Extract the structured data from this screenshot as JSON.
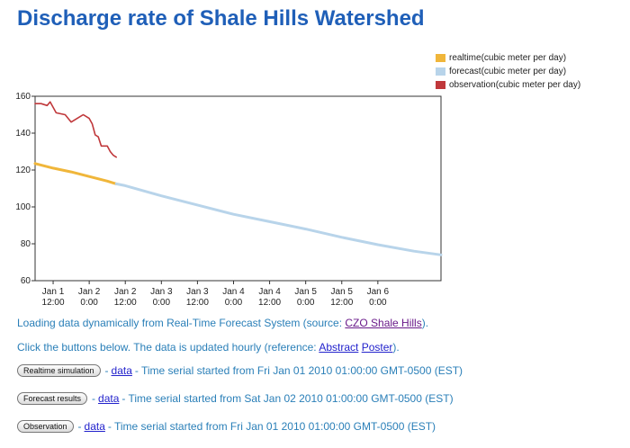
{
  "page": {
    "title": "Discharge rate of Shale Hills Watershed",
    "loading_prefix": "Loading data dynamically from Real-Time Forecast System (source: ",
    "loading_link": "CZO Shale Hills",
    "loading_suffix": ").",
    "click_prefix": "Click the buttons below. The data is updated hourly (reference: ",
    "abstract_link": "Abstract",
    "poster_link": "Poster",
    "click_suffix": ").",
    "rows": [
      {
        "button": "Realtime simulation",
        "sep": " - ",
        "link": "data",
        "text": " - Time serial started from Fri Jan 01 2010 01:00:00 GMT-0500 (EST)"
      },
      {
        "button": "Forecast results",
        "sep": " - ",
        "link": "data",
        "text": " - Time serial started from Sat Jan 02 2010 01:00:00 GMT-0500 (EST)"
      },
      {
        "button": "Observation",
        "sep": " - ",
        "link": "data",
        "text": " - Time serial started from Fri Jan 01 2010 01:00:00 GMT-0500 (EST)"
      }
    ]
  },
  "chart_data": {
    "type": "line",
    "title": "Discharge rate of Shale Hills Watershed",
    "xlabel": "",
    "ylabel": "",
    "ylim": [
      60,
      160
    ],
    "yticks": [
      60,
      80,
      100,
      120,
      140,
      160
    ],
    "xlim": [
      "2010-01-01 06:00",
      "2010-01-06 21:00"
    ],
    "xticks": [
      {
        "t": "2010-01-01 12:00",
        "line1": "Jan 1",
        "line2": "12:00"
      },
      {
        "t": "2010-01-02 00:00",
        "line1": "Jan 2",
        "line2": "0:00"
      },
      {
        "t": "2010-01-02 12:00",
        "line1": "Jan 2",
        "line2": "12:00"
      },
      {
        "t": "2010-01-03 00:00",
        "line1": "Jan 3",
        "line2": "0:00"
      },
      {
        "t": "2010-01-03 12:00",
        "line1": "Jan 3",
        "line2": "12:00"
      },
      {
        "t": "2010-01-04 00:00",
        "line1": "Jan 4",
        "line2": "0:00"
      },
      {
        "t": "2010-01-04 12:00",
        "line1": "Jan 4",
        "line2": "12:00"
      },
      {
        "t": "2010-01-05 00:00",
        "line1": "Jan 5",
        "line2": "0:00"
      },
      {
        "t": "2010-01-05 12:00",
        "line1": "Jan 5",
        "line2": "12:00"
      },
      {
        "t": "2010-01-06 00:00",
        "line1": "Jan 6",
        "line2": "0:00"
      }
    ],
    "legend_position": "top-right, outside plot",
    "grid": false,
    "series": [
      {
        "name": "realtime(cubic meter per day)",
        "color": "#f0b63a",
        "points": [
          [
            "2010-01-01 06:00",
            123.5
          ],
          [
            "2010-01-01 12:00",
            121
          ],
          [
            "2010-01-01 18:00",
            119
          ],
          [
            "2010-01-02 00:00",
            116.5
          ],
          [
            "2010-01-02 06:00",
            114
          ],
          [
            "2010-01-02 09:00",
            112.5
          ]
        ]
      },
      {
        "name": "forecast(cubic meter per day)",
        "color": "#b8d4ea",
        "points": [
          [
            "2010-01-02 09:00",
            112.5
          ],
          [
            "2010-01-02 12:00",
            111.5
          ],
          [
            "2010-01-03 00:00",
            106
          ],
          [
            "2010-01-03 12:00",
            101
          ],
          [
            "2010-01-04 00:00",
            96
          ],
          [
            "2010-01-04 12:00",
            92
          ],
          [
            "2010-01-05 00:00",
            88
          ],
          [
            "2010-01-05 12:00",
            83.5
          ],
          [
            "2010-01-06 00:00",
            79.5
          ],
          [
            "2010-01-06 12:00",
            76
          ],
          [
            "2010-01-06 21:00",
            74
          ]
        ]
      },
      {
        "name": "observation(cubic meter per day)",
        "color": "#c0383b",
        "points": [
          [
            "2010-01-01 06:00",
            156
          ],
          [
            "2010-01-01 08:00",
            156
          ],
          [
            "2010-01-01 10:00",
            155
          ],
          [
            "2010-01-01 11:00",
            157
          ],
          [
            "2010-01-01 13:00",
            151
          ],
          [
            "2010-01-01 16:00",
            150
          ],
          [
            "2010-01-01 18:00",
            146
          ],
          [
            "2010-01-01 20:00",
            148
          ],
          [
            "2010-01-01 22:00",
            150
          ],
          [
            "2010-01-02 00:00",
            148
          ],
          [
            "2010-01-02 01:00",
            145
          ],
          [
            "2010-01-02 02:00",
            139
          ],
          [
            "2010-01-02 03:00",
            138
          ],
          [
            "2010-01-02 04:00",
            133
          ],
          [
            "2010-01-02 06:00",
            133
          ],
          [
            "2010-01-02 07:00",
            130
          ],
          [
            "2010-01-02 08:00",
            128
          ],
          [
            "2010-01-02 09:00",
            127
          ]
        ]
      }
    ]
  }
}
